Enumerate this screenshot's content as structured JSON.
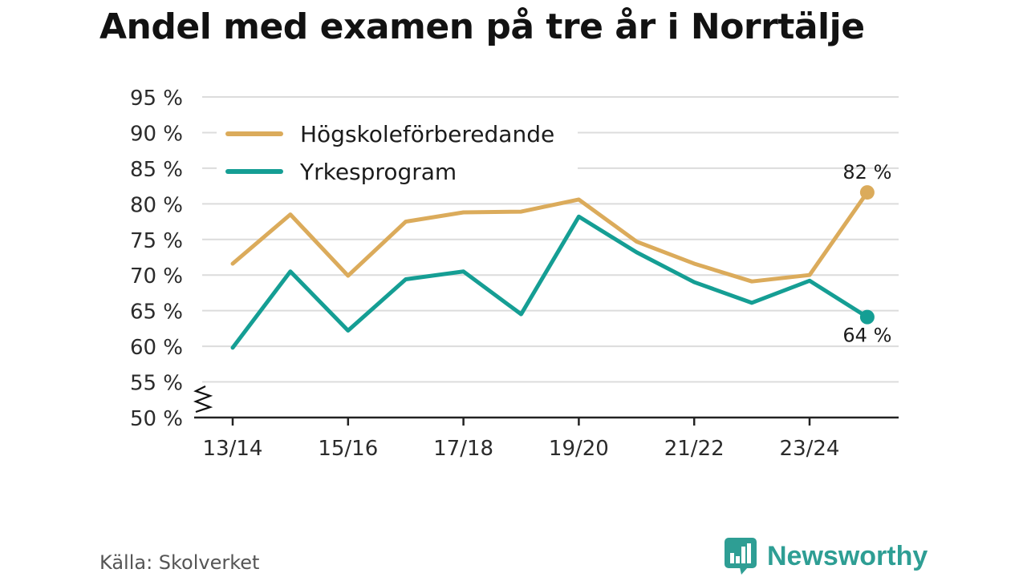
{
  "title": "Andel med examen på tre år i Norrtälje",
  "source": "Källa: Skolverket",
  "brand": {
    "name": "Newsworthy",
    "icon": "bar-chart-speech-bubble-icon"
  },
  "colors": {
    "hogskole": "#dbab5b",
    "yrkes": "#159e94",
    "grid": "#dcdcdc",
    "axis": "#222222",
    "brand": "#2e9e94"
  },
  "chart_data": {
    "type": "line",
    "title": "Andel med examen på tre år i Norrtälje",
    "x": [
      "13/14",
      "14/15",
      "15/16",
      "16/17",
      "17/18",
      "18/19",
      "19/20",
      "20/21",
      "21/22",
      "22/23",
      "23/24",
      "24/25"
    ],
    "tick_labels": [
      "13/14",
      "15/16",
      "17/18",
      "19/20",
      "21/22",
      "23/24"
    ],
    "y_ticks": [
      50,
      55,
      60,
      65,
      70,
      75,
      80,
      85,
      90,
      95
    ],
    "y_tick_labels": [
      "50 %",
      "55 %",
      "60 %",
      "65 %",
      "70 %",
      "75 %",
      "80 %",
      "85 %",
      "90 %",
      "95 %"
    ],
    "ylim": [
      50,
      95
    ],
    "axis_break": true,
    "grid": true,
    "legend_position": "top-left",
    "series": [
      {
        "name": "Högskoleförberedande",
        "color": "#dbab5b",
        "values": [
          71.6,
          78.5,
          69.9,
          77.5,
          78.8,
          78.9,
          80.6,
          74.7,
          71.6,
          69.1,
          70.0,
          81.6
        ],
        "end_label": "82 %"
      },
      {
        "name": "Yrkesprogram",
        "color": "#159e94",
        "values": [
          59.8,
          70.5,
          62.2,
          69.4,
          70.5,
          64.5,
          78.2,
          73.2,
          69.0,
          66.1,
          69.2,
          64.1
        ],
        "end_label": "64 %"
      }
    ]
  }
}
